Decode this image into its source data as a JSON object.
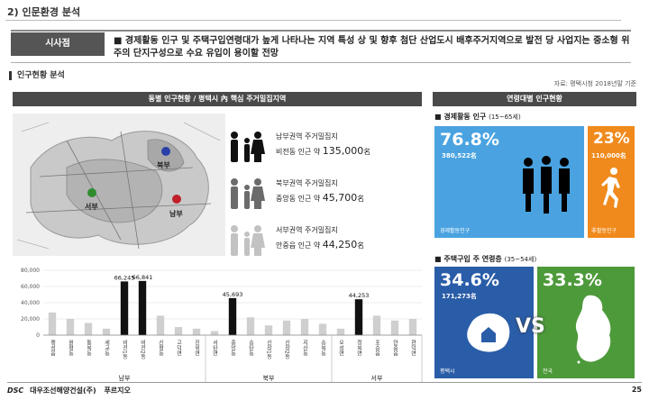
{
  "header": {
    "section_title": "2) 인문환경 분석"
  },
  "summary": {
    "tag": "시사점",
    "text": "■ 경제활동 인구 및 주택구입연령대가 높게 나타나는 지역 특성 상 및 향후 첨단 산업도시 배후주거지역으로 발전 당 사업지는 중소형 위주의 단지구성으로 수요 유입이 용이할 전망"
  },
  "sub_title": "인구현황 분석",
  "source_note": "자료: 평택시청 2018년말 기준",
  "left_panel": {
    "title": "동별 인구현황 / 평택시 內 핵심 주거밀집지역",
    "map_labels": [
      "서부",
      "북부",
      "남부"
    ],
    "stats": [
      {
        "line1": "남부권역 주거밀집지",
        "line2": "비전동 인근 약",
        "value": "135,000",
        "unit": "名"
      },
      {
        "line1": "북부권역 주거밀집지",
        "line2": "중앙동 인근 약",
        "value": "45,700",
        "unit": "名"
      },
      {
        "line1": "서부권역 주거밀집지",
        "line2": "안중읍 인근 약",
        "value": "44,250",
        "unit": "名"
      }
    ]
  },
  "chart_data": {
    "type": "bar",
    "ylim": [
      0,
      80000
    ],
    "yticks": [
      "80,000",
      "60,000",
      "40,000",
      "20,000",
      "0"
    ],
    "categories": [
      "팽성읍",
      "원평동",
      "통복동",
      "세교동",
      "비전1동",
      "비전2동",
      "신평동",
      "고덕면",
      "진위면",
      "서탄면",
      "중앙동",
      "송탄동",
      "신장1동",
      "신장2동",
      "지산동",
      "송북동",
      "오성면",
      "청북면",
      "포승읍",
      "안중읍",
      "현덕면"
    ],
    "values": [
      28000,
      20000,
      15000,
      8000,
      66245,
      66841,
      24000,
      10000,
      8000,
      5000,
      45693,
      22000,
      12000,
      18000,
      20000,
      14000,
      8000,
      44253,
      24000,
      18000,
      20000
    ],
    "highlight": [
      false,
      false,
      false,
      false,
      true,
      true,
      false,
      false,
      false,
      false,
      true,
      false,
      false,
      false,
      false,
      false,
      false,
      true,
      false,
      false,
      false
    ],
    "data_labels": [
      {
        "index": 4,
        "text": "66,245"
      },
      {
        "index": 5,
        "text": "66,841"
      },
      {
        "index": 10,
        "text": "45,693"
      },
      {
        "index": 17,
        "text": "44,253"
      }
    ],
    "groups": [
      {
        "name": "남부",
        "from": 0,
        "to": 8
      },
      {
        "name": "북부",
        "from": 9,
        "to": 15
      },
      {
        "name": "서부",
        "from": 16,
        "to": 20
      }
    ]
  },
  "right_panel": {
    "title": "연령대별 인구현황",
    "econ": {
      "heading": "■ 경제활동 인구",
      "range": "(15~65세)",
      "active": {
        "pct": "76.8%",
        "count": "380,522名",
        "caption": "경제활동인구",
        "color": "#4aa3e0"
      },
      "inactive": {
        "pct": "23%",
        "count": "110,000名",
        "caption": "非활동인구",
        "color": "#f08a1c"
      }
    },
    "buyer": {
      "heading": "■ 주택구입 주 연령층",
      "range": "(35~54세)",
      "city": {
        "pct": "34.6%",
        "count": "171,273名",
        "caption": "평택시",
        "color": "#2a5da8"
      },
      "nation": {
        "pct": "33.3%",
        "caption": "전국",
        "color": "#4d9a3a"
      },
      "vs": "VS"
    }
  },
  "footer": {
    "logo": "DSC",
    "company": "대우조선해양건설(주)",
    "brand": "푸르지오",
    "page": "25"
  }
}
